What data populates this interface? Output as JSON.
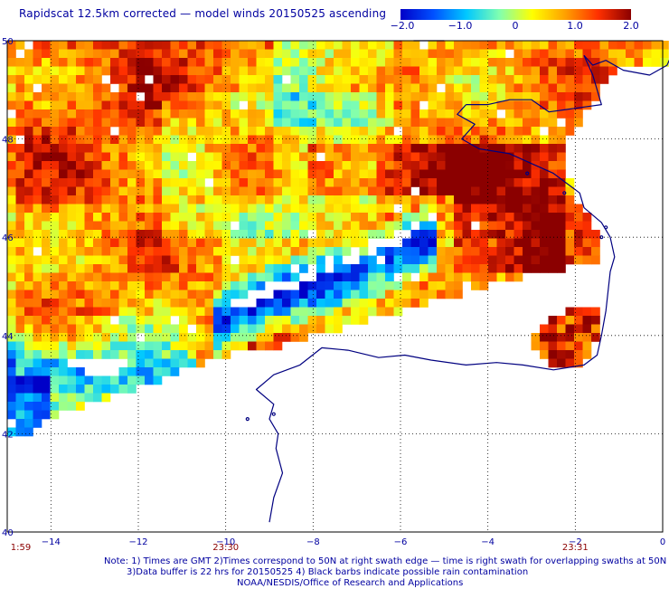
{
  "title": "Rapidscat 12.5km corrected — model winds 20150525 ascending",
  "colorbar": {
    "min": -2.0,
    "max": 2.0,
    "tick_labels": [
      "−2.0",
      "−1.0",
      "0",
      "1.0",
      "2.0"
    ],
    "tick_values": [
      -2.0,
      -1.0,
      0,
      1.0,
      2.0
    ],
    "colors": [
      "#0000c8",
      "#0050ff",
      "#00c8ff",
      "#80ffb0",
      "#ffff00",
      "#ffa000",
      "#ff3000",
      "#8b0000"
    ]
  },
  "map": {
    "lon_range": [
      -15,
      0
    ],
    "lat_range": [
      40,
      50
    ],
    "lon_ticks": [
      -14,
      -12,
      -10,
      -8,
      -6,
      -4,
      -2,
      0
    ],
    "lon_tick_labels": [
      "−14",
      "−12",
      "−10",
      "−8",
      "−6",
      "−4",
      "−2",
      "0"
    ],
    "lat_ticks": [
      42,
      44,
      46,
      48,
      50
    ],
    "lat_tick_labels": [
      "42",
      "44",
      "46",
      "48",
      "50"
    ],
    "grid": true,
    "coast_color": "#000080"
  },
  "time_labels": [
    {
      "text": "1:59",
      "lon": -15
    },
    {
      "text": "23:30",
      "lon": -10
    },
    {
      "text": "23:31",
      "lon": -2
    }
  ],
  "notes": {
    "line1": "Note: 1) Times are GMT 2)Times correspond to 50N at right swath edge — time is right swath for overlapping swaths at 50N",
    "line2": "3)Data buffer is 22 hrs for 20150525 4) Black barbs indicate possible rain contamination",
    "line3": "NOAA/NESDIS/Office of Research and Applications"
  }
}
